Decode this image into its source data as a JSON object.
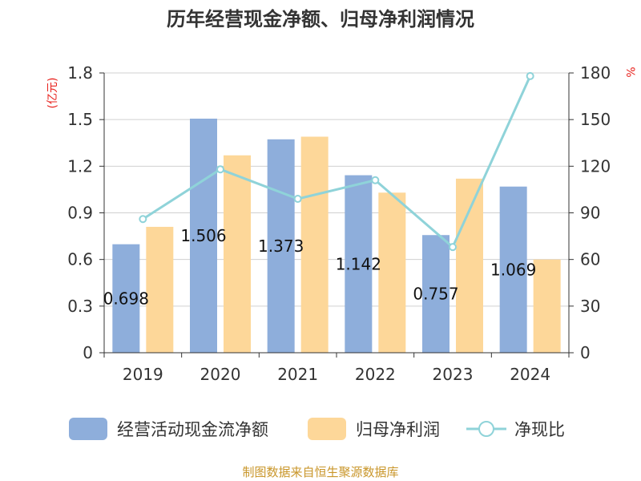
{
  "chart_data": {
    "type": "bar",
    "title": "历年经营现金净额、归母净利润情况",
    "categories": [
      "2019",
      "2020",
      "2021",
      "2022",
      "2023",
      "2024"
    ],
    "left_axis": {
      "unit": "(亿元)",
      "ylim": [
        0,
        1.8
      ],
      "ticks": [
        "0",
        "0.3",
        "0.6",
        "0.9",
        "1.2",
        "1.5",
        "1.8"
      ]
    },
    "right_axis": {
      "unit": "%",
      "ylim": [
        0,
        180
      ],
      "ticks": [
        "0",
        "30",
        "60",
        "90",
        "120",
        "150",
        "180"
      ]
    },
    "grid": true,
    "legend_position": "bottom",
    "series": [
      {
        "name": "经营活动现金流净额",
        "type": "bar",
        "axis": "left",
        "color": "#8eaedb",
        "values": [
          0.698,
          1.506,
          1.373,
          1.142,
          0.757,
          1.069
        ],
        "data_labels": [
          "0.698",
          "1.506",
          "1.373",
          "1.142",
          "0.757",
          "1.069"
        ]
      },
      {
        "name": "归母净利润",
        "type": "bar",
        "axis": "left",
        "color": "#fdd799",
        "values": [
          0.81,
          1.27,
          1.39,
          1.03,
          1.12,
          0.6
        ]
      },
      {
        "name": "净现比",
        "type": "line",
        "axis": "right",
        "color": "#8fd3d9",
        "values": [
          86,
          118,
          99,
          111,
          68,
          178
        ]
      }
    ],
    "source": "制图数据来自恒生聚源数据库"
  }
}
